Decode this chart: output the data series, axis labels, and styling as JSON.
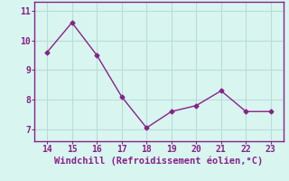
{
  "x": [
    14,
    15,
    16,
    17,
    18,
    19,
    20,
    21,
    22,
    23
  ],
  "y": [
    9.6,
    10.6,
    9.5,
    8.1,
    7.05,
    7.6,
    7.8,
    8.3,
    7.6,
    7.6
  ],
  "line_color": "#882288",
  "marker": "D",
  "marker_size": 2.5,
  "xlabel": "Windchill (Refroidissement éolien,°C)",
  "xlabel_fontsize": 7.5,
  "xlabel_color": "#882288",
  "background_color": "#d8f5f0",
  "grid_color": "#b8ddd8",
  "tick_color": "#882288",
  "xlim": [
    13.5,
    23.5
  ],
  "ylim": [
    6.6,
    11.3
  ],
  "xticks": [
    14,
    15,
    16,
    17,
    18,
    19,
    20,
    21,
    22,
    23
  ],
  "yticks": [
    7,
    8,
    9,
    10,
    11
  ],
  "spine_color": "#882288",
  "tick_fontsize": 7,
  "line_width": 1.0
}
